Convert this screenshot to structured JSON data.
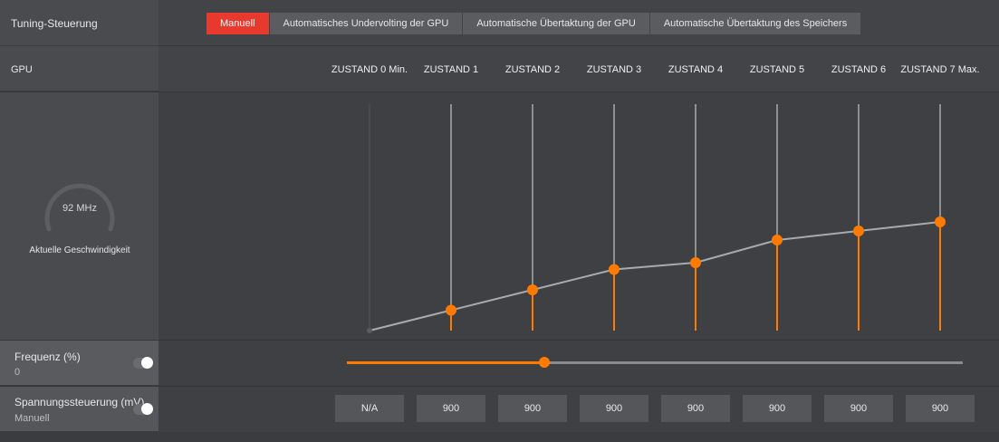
{
  "header": {
    "title": "Tuning-Steuerung",
    "tabs": [
      {
        "label": "Manuell",
        "active": true
      },
      {
        "label": "Automatisches Undervolting der GPU",
        "active": false
      },
      {
        "label": "Automatische Übertaktung der GPU",
        "active": false
      },
      {
        "label": "Automatische Übertaktung des Speichers",
        "active": false
      }
    ]
  },
  "gpu": {
    "label": "GPU",
    "states": [
      "ZUSTAND 0 Min.",
      "ZUSTAND 1",
      "ZUSTAND 2",
      "ZUSTAND 3",
      "ZUSTAND 4",
      "ZUSTAND 5",
      "ZUSTAND 6",
      "ZUSTAND 7 Max."
    ]
  },
  "gauge": {
    "value": "92 MHz",
    "caption": "Aktuelle Geschwindigkeit"
  },
  "frequency": {
    "label": "Frequenz (%)",
    "value": "0",
    "slider_fraction": 0.32,
    "enabled": true
  },
  "voltage": {
    "label": "Spannungssteuerung (mV)",
    "mode": "Manuell",
    "enabled": true,
    "values": [
      "N/A",
      "900",
      "900",
      "900",
      "900",
      "900",
      "900",
      "900"
    ]
  },
  "curve": {
    "levels": [
      0.0,
      0.09,
      0.18,
      0.27,
      0.3,
      0.4,
      0.44,
      0.48
    ]
  },
  "colors": {
    "accent": "#ff7a00",
    "active_tab": "#e8392f"
  }
}
